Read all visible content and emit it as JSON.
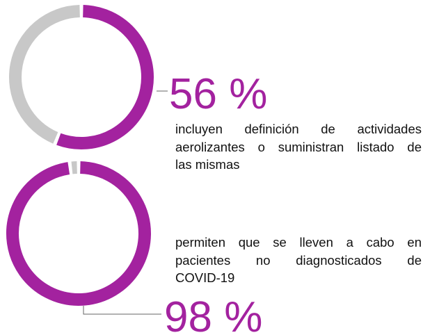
{
  "chart_data": [
    {
      "type": "donut",
      "values": [
        56
      ],
      "value_labels": [
        "56 %"
      ],
      "ylim": [
        0,
        100
      ],
      "color": "#a3229f",
      "track_color": "#c8c8c8",
      "description": [
        "incluyen definición de actividades",
        "aerolizantes o suministran listado de",
        "las mismas"
      ]
    },
    {
      "type": "donut",
      "values": [
        98
      ],
      "value_labels": [
        "98 %"
      ],
      "ylim": [
        0,
        100
      ],
      "color": "#a3229f",
      "track_color": "#c8c8c8",
      "description": [
        "permiten que se lleven a cabo en",
        "pacientes no diagnosticados de",
        "COVID-19"
      ]
    }
  ]
}
